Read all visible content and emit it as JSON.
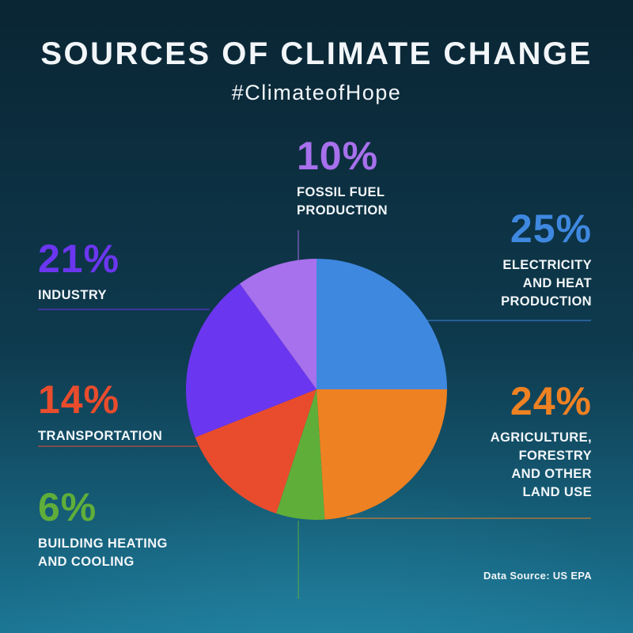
{
  "header": {
    "title": "SOURCES OF CLIMATE CHANGE",
    "subtitle": "#ClimateofHope"
  },
  "footer": {
    "source_label": "Data Source: US EPA"
  },
  "theme": {
    "background_top": "#0a2533",
    "background_mid": "#0e3a4e",
    "background_bottom": "#1b7694",
    "text": "#f2f6f9"
  },
  "chart_data": {
    "type": "pie",
    "title": "Sources of Climate Change",
    "subtitle": "#ClimateofHope",
    "source": "Data Source: US EPA",
    "start_angle_deg_from_top": 0,
    "direction": "clockwise",
    "legend_position": "around",
    "slices": [
      {
        "label": "Electricity and Heat Production",
        "value": 25,
        "pct_label": "25%",
        "color": "#3f88e0",
        "caption": "ELECTRICITY\nAND HEAT\nPRODUCTION"
      },
      {
        "label": "Agriculture, Forestry and Other Land Use",
        "value": 24,
        "pct_label": "24%",
        "color": "#ee8122",
        "caption": "AGRICULTURE,\nFORESTRY\nAND OTHER\nLAND USE"
      },
      {
        "label": "Building Heating and Cooling",
        "value": 6,
        "pct_label": "6%",
        "color": "#5fae3a",
        "caption": "BUILDING HEATING\nAND COOLING"
      },
      {
        "label": "Transportation",
        "value": 14,
        "pct_label": "14%",
        "color": "#e94c2d",
        "caption": "TRANSPORTATION"
      },
      {
        "label": "Industry",
        "value": 21,
        "pct_label": "21%",
        "color": "#6b36f0",
        "caption": "INDUSTRY"
      },
      {
        "label": "Fossil Fuel Production",
        "value": 10,
        "pct_label": "10%",
        "color": "#a770ec",
        "caption": "FOSSIL FUEL\nPRODUCTION"
      }
    ]
  }
}
